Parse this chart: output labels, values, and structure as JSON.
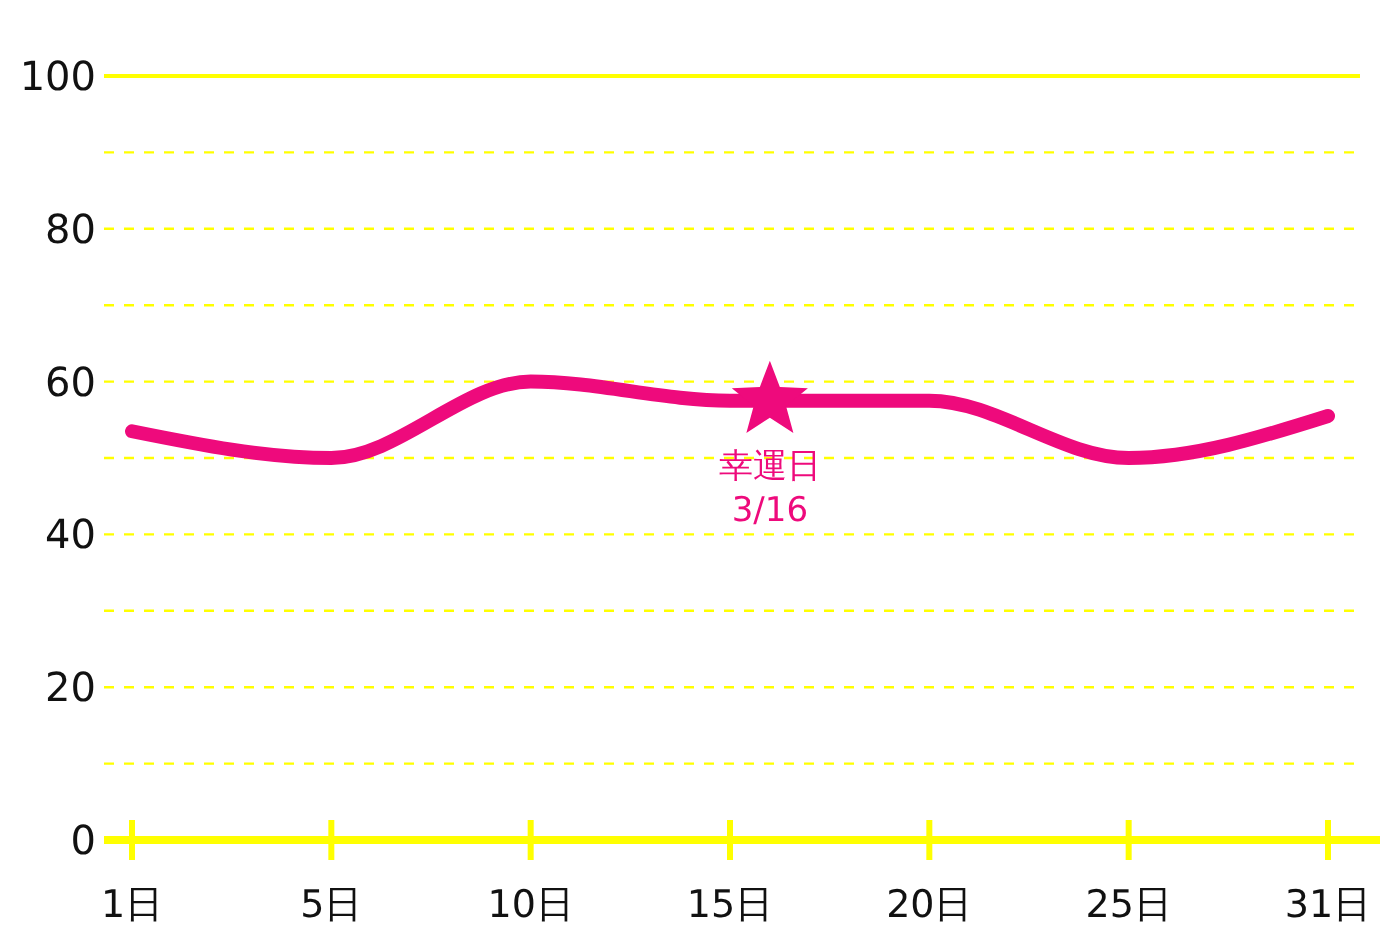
{
  "chart_data": {
    "type": "line",
    "categories": [
      "1日",
      "5日",
      "10日",
      "15日",
      "20日",
      "25日",
      "31日"
    ],
    "series": [
      {
        "color": "#ee0a7c",
        "values": [
          53.5,
          50,
          60,
          57.5,
          57.5,
          50,
          55.5
        ]
      }
    ],
    "ylim": [
      0,
      100
    ],
    "yticks": [
      0,
      {
        "value": 10,
        "label": null
      },
      20,
      {
        "value": 30,
        "label": null
      },
      40,
      {
        "value": 50,
        "label": null
      },
      60,
      {
        "value": 70,
        "label": null
      },
      80,
      {
        "value": 90,
        "label": null
      },
      100
    ],
    "grid": "y",
    "marker": "none",
    "line_style": "solid",
    "annotations": [
      {
        "text": "幸運日\n3/16",
        "y": 57.5
      }
    ]
  }
}
